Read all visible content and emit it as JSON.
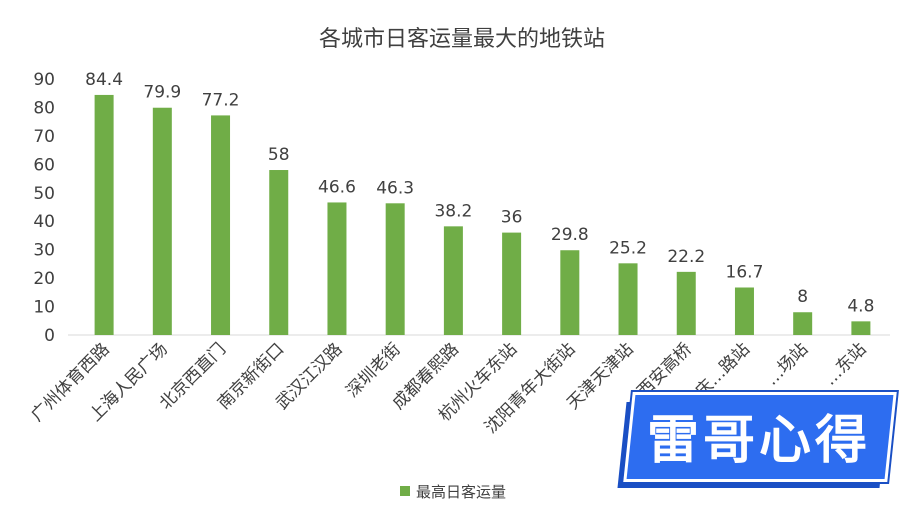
{
  "chart_data": {
    "type": "bar",
    "title": "各城市日客运量最大的地铁站",
    "categories": [
      "广州体育西路",
      "上海人民广场",
      "北京西直门",
      "南京新街口",
      "武汉江汉路",
      "深圳老街",
      "成都春熙路",
      "杭州火车东站",
      "沈阳青年大街站",
      "天津天津站",
      "西安高桥",
      "重庆…路站",
      "…场站",
      "…东站"
    ],
    "series": [
      {
        "name": "最高日客运量",
        "values": [
          84.4,
          79.9,
          77.2,
          58,
          46.6,
          46.3,
          38.2,
          36,
          29.8,
          25.2,
          22.2,
          16.7,
          8,
          4.8
        ]
      }
    ],
    "ylim": [
      0,
      90
    ],
    "yticks": [
      0,
      10,
      20,
      30,
      40,
      50,
      60,
      70,
      80,
      90
    ],
    "xlabel": "",
    "ylabel": "",
    "grid": false,
    "legend": "bottom",
    "bar_color": "#70ad47"
  },
  "watermark": {
    "text": "雷哥心得",
    "color": "#2d6df0"
  }
}
